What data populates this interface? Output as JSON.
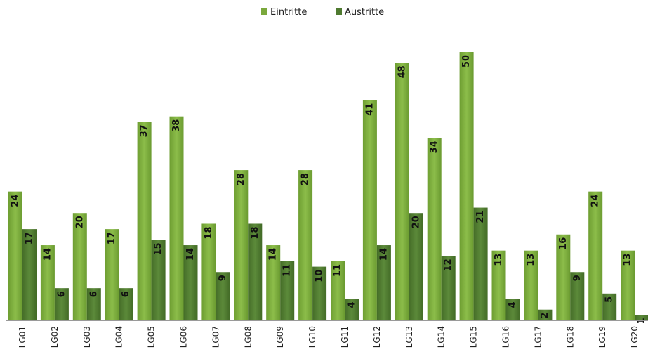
{
  "chart_data": {
    "type": "bar",
    "categories": [
      "LG01",
      "LG02",
      "LG03",
      "LG04",
      "LG05",
      "LG06",
      "LG07",
      "LG08",
      "LG09",
      "LG10",
      "LG11",
      "LG12",
      "LG13",
      "LG14",
      "LG15",
      "LG16",
      "LG17",
      "LG18",
      "LG19",
      "LG20"
    ],
    "series": [
      {
        "name": "Eintritte",
        "color": "#7aa83c",
        "values": [
          24,
          14,
          20,
          17,
          37,
          38,
          18,
          28,
          14,
          28,
          11,
          41,
          48,
          34,
          50,
          13,
          13,
          16,
          24,
          13
        ]
      },
      {
        "name": "Austritte",
        "color": "#4f7a30",
        "values": [
          17,
          6,
          6,
          6,
          15,
          14,
          9,
          18,
          11,
          10,
          4,
          14,
          20,
          12,
          21,
          4,
          2,
          9,
          5,
          1
        ]
      }
    ],
    "ylim": [
      0,
      50
    ],
    "legend_position": "top-center",
    "grid": false,
    "title": "",
    "xlabel": "",
    "ylabel": ""
  }
}
